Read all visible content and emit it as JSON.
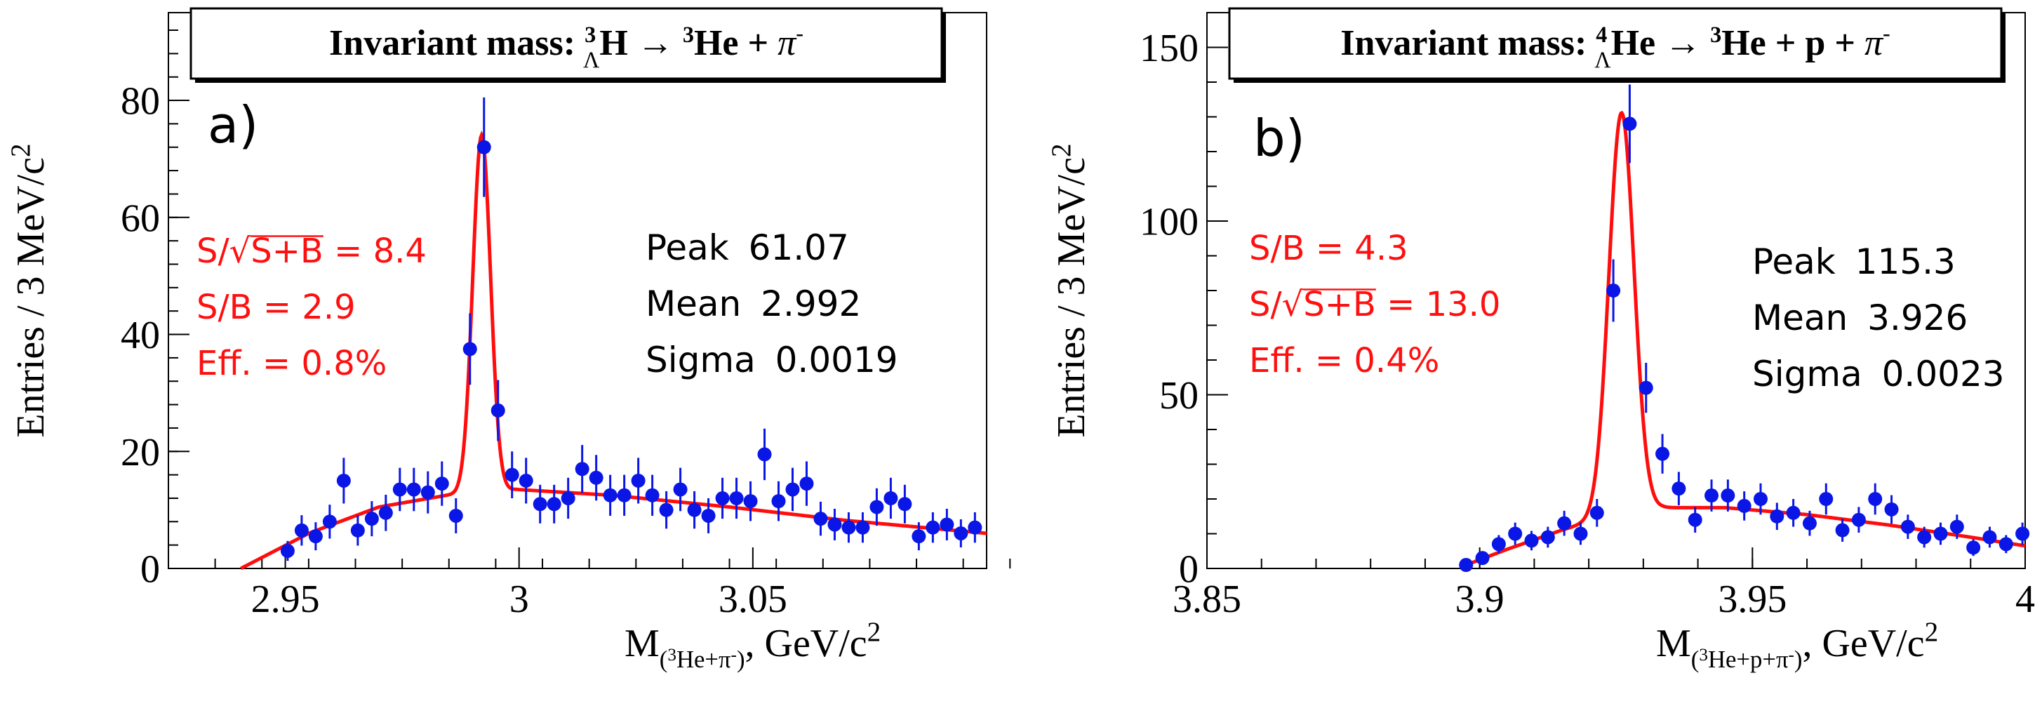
{
  "colors": {
    "data": "#0a16e6",
    "fit": "#ff0d0d",
    "annot_red": "#ff1010",
    "axis": "#000000"
  },
  "chart_data": [
    {
      "type": "scatter",
      "panel_label": "a)",
      "title": {
        "prefix": "Invariant mass:",
        "hyp_sup": "3",
        "hyp_sub": "Λ",
        "hyp": "H",
        "arrow": "→",
        "he_sup": "3",
        "he": "He +",
        "pi": "π",
        "pi_sup": "-"
      },
      "ylabel": "Entries / 3 MeV/c",
      "ylabel_sup": "2",
      "xlabel": {
        "main": "M",
        "sub_open": "(",
        "sub_sup": "3",
        "sub_text": "He+π",
        "sub_sup2": "-",
        "sub_close": ")",
        "units": ", GeV/c",
        "units_sup": "2"
      },
      "xlim": [
        2.925,
        3.1
      ],
      "ylim": [
        0,
        95
      ],
      "xticks": [
        {
          "v": 2.95,
          "label": "2.95"
        },
        {
          "v": 3.0,
          "label": "3"
        },
        {
          "v": 3.05,
          "label": "3.05"
        }
      ],
      "yticks": [
        {
          "v": 0,
          "label": "0"
        },
        {
          "v": 20,
          "label": "20"
        },
        {
          "v": 40,
          "label": "40"
        },
        {
          "v": 60,
          "label": "60"
        },
        {
          "v": 80,
          "label": "80"
        }
      ],
      "x_minor_step": 0.01,
      "y_minor_step": 4,
      "stats": [
        {
          "label": "Peak",
          "value": "61.07"
        },
        {
          "label": "Mean",
          "value": "2.992"
        },
        {
          "label": "Sigma",
          "value": "0.0019"
        }
      ],
      "annotations": [
        {
          "pre": "S/",
          "rad": "S+B",
          "post": " = 8.4",
          "sqrt": true
        },
        {
          "pre": "S/B = 2.9",
          "sqrt": false
        },
        {
          "pre": "Eff. = 0.8%",
          "sqrt": false
        }
      ],
      "points": {
        "x": [
          2.9505,
          2.9535,
          2.9565,
          2.9595,
          2.9625,
          2.9655,
          2.9685,
          2.9715,
          2.9745,
          2.9775,
          2.9805,
          2.9835,
          2.9865,
          2.9895,
          2.9925,
          2.9955,
          2.9985,
          3.0015,
          3.0045,
          3.0075,
          3.0105,
          3.0135,
          3.0165,
          3.0195,
          3.0225,
          3.0255,
          3.0285,
          3.0315,
          3.0345,
          3.0375,
          3.0405,
          3.0435,
          3.0465,
          3.0495,
          3.0525,
          3.0555,
          3.0585,
          3.0615,
          3.0645,
          3.0675,
          3.0705,
          3.0735,
          3.0765,
          3.0795,
          3.0825,
          3.0855,
          3.0885,
          3.0915,
          3.0945,
          3.0975
        ],
        "y": [
          3,
          6.5,
          5.5,
          8,
          15,
          6.5,
          8.5,
          9.5,
          13.5,
          13.5,
          13,
          14.5,
          9,
          37.5,
          72,
          27,
          16,
          15,
          11,
          11,
          12,
          17,
          15.5,
          12.5,
          12.5,
          15,
          12.5,
          10,
          13.5,
          10,
          9,
          12,
          12,
          11.5,
          19.5,
          11.5,
          13.5,
          14.5,
          8.5,
          7.5,
          7,
          7,
          10.5,
          12,
          11,
          5.5,
          7,
          7.5,
          6,
          7
        ],
        "err": [
          1.7,
          2.6,
          2.4,
          2.9,
          3.9,
          2.6,
          3,
          3.1,
          3.7,
          3.7,
          3.6,
          3.8,
          3,
          6.1,
          8.5,
          5.2,
          4,
          3.9,
          3.3,
          3.3,
          3.5,
          4.1,
          3.9,
          3.5,
          3.5,
          3.9,
          3.5,
          3.2,
          3.7,
          3.2,
          3,
          3.5,
          3.5,
          3.4,
          4.4,
          3.4,
          3.7,
          3.8,
          2.9,
          2.7,
          2.6,
          2.6,
          3.2,
          3.5,
          3.3,
          2.4,
          2.6,
          2.7,
          2.4,
          2.6
        ]
      },
      "fit": {
        "peak": 61.07,
        "mean": 2.992,
        "sigma": 0.0019,
        "bkg_points": [
          [
            2.9405,
            0
          ],
          [
            2.955,
            6
          ],
          [
            2.97,
            10.5
          ],
          [
            2.9845,
            12.5
          ],
          [
            2.9995,
            13.5
          ],
          [
            3.02,
            12.5
          ],
          [
            3.045,
            10.5
          ],
          [
            3.07,
            8.2
          ],
          [
            3.1,
            6
          ]
        ]
      }
    },
    {
      "type": "scatter",
      "panel_label": "b)",
      "title": {
        "prefix": "Invariant mass:",
        "hyp_sup": "4",
        "hyp_sub": "Λ",
        "hyp": "He",
        "arrow": "→",
        "he_sup": "3",
        "he": "He + p +",
        "pi": "π",
        "pi_sup": "-"
      },
      "ylabel": "Entries / 3 MeV/c",
      "ylabel_sup": "2",
      "xlabel": {
        "main": "M",
        "sub_open": "(",
        "sub_sup": "3",
        "sub_text": "He+p+π",
        "sub_sup2": "-",
        "sub_close": ")",
        "units": ", GeV/c",
        "units_sup": "2"
      },
      "xlim": [
        3.85,
        4.0
      ],
      "ylim": [
        0,
        160
      ],
      "xticks": [
        {
          "v": 3.85,
          "label": "3.85"
        },
        {
          "v": 3.9,
          "label": "3.9"
        },
        {
          "v": 3.95,
          "label": "3.95"
        },
        {
          "v": 4.0,
          "label": "4"
        }
      ],
      "yticks": [
        {
          "v": 0,
          "label": "0"
        },
        {
          "v": 50,
          "label": "50"
        },
        {
          "v": 100,
          "label": "100"
        },
        {
          "v": 150,
          "label": "150"
        }
      ],
      "x_minor_step": 0.01,
      "y_minor_step": 10,
      "stats": [
        {
          "label": "Peak",
          "value": "115.3"
        },
        {
          "label": "Mean",
          "value": "3.926"
        },
        {
          "label": "Sigma",
          "value": "0.0023"
        }
      ],
      "annotations": [
        {
          "pre": "S/B = 4.3",
          "sqrt": false
        },
        {
          "pre": "S/",
          "rad": "S+B",
          "post": " = 13.0",
          "sqrt": true
        },
        {
          "pre": "Eff. = 0.4%",
          "sqrt": false
        }
      ],
      "points": {
        "x": [
          3.8975,
          3.9005,
          3.9035,
          3.9065,
          3.9095,
          3.9125,
          3.9155,
          3.9185,
          3.9215,
          3.9245,
          3.9275,
          3.9305,
          3.9335,
          3.9365,
          3.9395,
          3.9425,
          3.9455,
          3.9485,
          3.9515,
          3.9545,
          3.9575,
          3.9605,
          3.9635,
          3.9665,
          3.9695,
          3.9725,
          3.9755,
          3.9785,
          3.9815,
          3.9845,
          3.9875,
          3.9905,
          3.9935,
          3.9965,
          3.9995
        ],
        "y": [
          1,
          3,
          7,
          10,
          8,
          9,
          13,
          10,
          16,
          80,
          128,
          52,
          33,
          23,
          14,
          21,
          21,
          18,
          20,
          15,
          16,
          13,
          20,
          11,
          14,
          20,
          17,
          12,
          9,
          10,
          12,
          6,
          9,
          7,
          10
        ],
        "err": [
          1,
          1.7,
          2.6,
          3.2,
          2.8,
          3,
          3.6,
          3.2,
          4,
          9,
          11.3,
          7.2,
          5.7,
          4.8,
          3.7,
          4.6,
          4.6,
          4.2,
          4.5,
          3.9,
          4,
          3.6,
          4.5,
          3.3,
          3.7,
          4.5,
          4.1,
          3.5,
          3,
          3.2,
          3.5,
          2.4,
          3,
          2.6,
          3.2
        ]
      },
      "fit": {
        "peak": 115.3,
        "mean": 3.926,
        "sigma": 0.0023,
        "bkg_points": [
          [
            3.8975,
            1
          ],
          [
            3.905,
            5.5
          ],
          [
            3.915,
            11
          ],
          [
            3.9245,
            15.5
          ],
          [
            3.9335,
            17.5
          ],
          [
            3.945,
            17.5
          ],
          [
            3.96,
            15.5
          ],
          [
            3.975,
            12.5
          ],
          [
            3.99,
            9
          ],
          [
            4.0,
            6.5
          ]
        ]
      }
    }
  ]
}
